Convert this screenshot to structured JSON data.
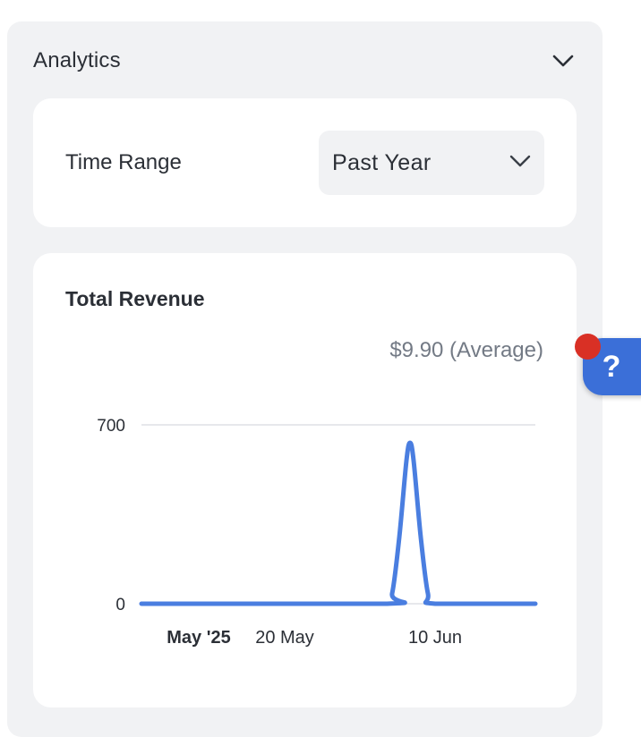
{
  "panel": {
    "title": "Analytics"
  },
  "time_range": {
    "label": "Time Range",
    "selected": "Past Year"
  },
  "revenue": {
    "title": "Total Revenue",
    "average": "$9.90 (Average)"
  },
  "help": {
    "glyph": "?"
  },
  "colors": {
    "accent": "#4a7ee0",
    "help_button": "#3b6fd8",
    "notification": "#d93025",
    "panel_bg": "#f1f2f4"
  },
  "chart_data": {
    "type": "line",
    "title": "Total Revenue",
    "xlabel": "",
    "ylabel": "",
    "yticks": [
      0,
      700
    ],
    "ylim": [
      0,
      700
    ],
    "xticks": [
      {
        "label": "May '25",
        "day": 8,
        "bold": true
      },
      {
        "label": "20 May",
        "day": 20,
        "bold": false
      },
      {
        "label": "10 Jun",
        "day": 41,
        "bold": false
      }
    ],
    "xlim": [
      0,
      55
    ],
    "grid": true,
    "series": [
      {
        "values": [
          {
            "day": 0,
            "value": 0
          },
          {
            "day": 34,
            "value": 0
          },
          {
            "day": 35,
            "value": 40
          },
          {
            "day": 36,
            "value": 260
          },
          {
            "day": 37,
            "value": 560
          },
          {
            "day": 37.5,
            "value": 630
          },
          {
            "day": 38,
            "value": 560
          },
          {
            "day": 39,
            "value": 260
          },
          {
            "day": 40,
            "value": 40
          },
          {
            "day": 41,
            "value": 0
          },
          {
            "day": 55,
            "value": 0
          }
        ]
      }
    ]
  }
}
